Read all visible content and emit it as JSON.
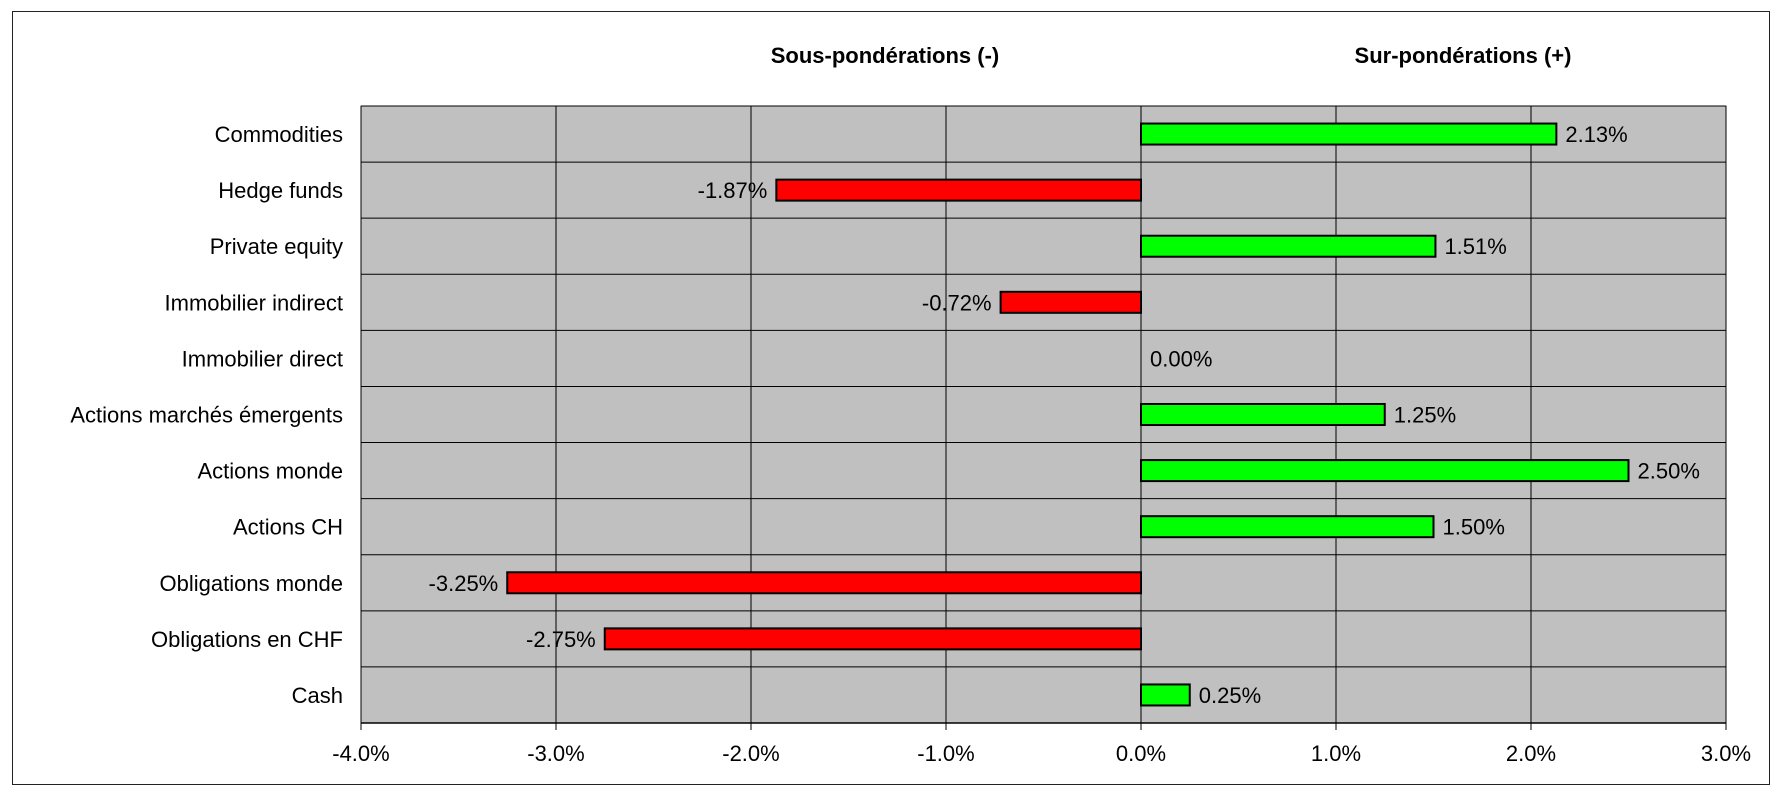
{
  "headers": {
    "negative": "Sous-pondérations (-)",
    "positive": "Sur-pondérations (+)"
  },
  "colors": {
    "plot_background": "#c0c0c0",
    "positive_bar": "#00ff00",
    "negative_bar": "#ff0000",
    "grid": "#000000"
  },
  "chart_data": {
    "type": "bar",
    "orientation": "horizontal",
    "categories": [
      "Commodities",
      "Hedge funds",
      "Private equity",
      "Immobilier indirect",
      "Immobilier direct",
      "Actions marchés émergents",
      "Actions monde",
      "Actions CH",
      "Obligations monde",
      "Obligations en CHF",
      "Cash"
    ],
    "values": [
      2.13,
      -1.87,
      1.51,
      -0.72,
      0.0,
      1.25,
      2.5,
      1.5,
      -3.25,
      -2.75,
      0.25
    ],
    "value_labels": [
      "2.13%",
      "-1.87%",
      "1.51%",
      "-0.72%",
      "0.00%",
      "1.25%",
      "2.50%",
      "1.50%",
      "-3.25%",
      "-2.75%",
      "0.25%"
    ],
    "xlim": [
      -4.0,
      3.0
    ],
    "xticks": [
      -4,
      -3,
      -2,
      -1,
      0,
      1,
      2,
      3
    ],
    "xtick_labels": [
      "-4.0%",
      "-3.0%",
      "-2.0%",
      "-1.0%",
      "0.0%",
      "1.0%",
      "2.0%",
      "3.0%"
    ],
    "grid": true,
    "legend": "none",
    "title": "",
    "xlabel": "",
    "ylabel": ""
  }
}
